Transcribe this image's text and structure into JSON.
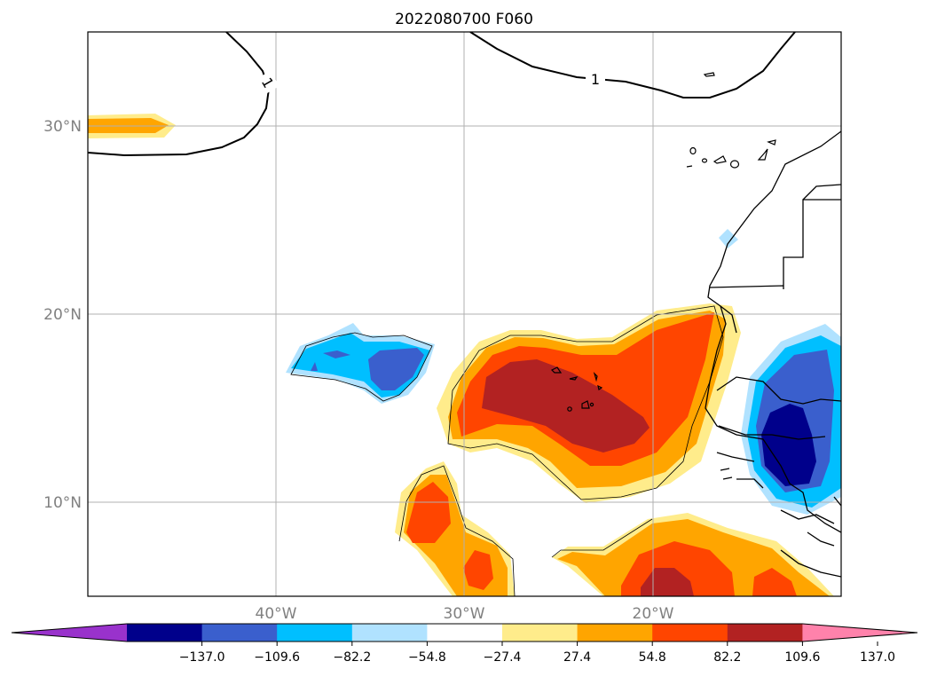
{
  "title": "2022080700 F060",
  "lat_ticks": [
    "30°N",
    "20°N",
    "10°N"
  ],
  "lon_ticks": [
    "40°W",
    "30°W",
    "20°W"
  ],
  "contour_label": "1",
  "colorbar": {
    "ticks": [
      "−137.0",
      "−109.6",
      "−82.2",
      "−54.8",
      "−27.4",
      "27.4",
      "54.8",
      "82.2",
      "109.6",
      "137.0"
    ],
    "colors": {
      "under": "#9932cc",
      "bins": [
        "#00008b",
        "#3a5fcd",
        "#00bfff",
        "#b0e2ff",
        "#ffffff",
        "#ffec8b",
        "#ffa500",
        "#ff4500",
        "#b22222"
      ],
      "over": "#ff82ab"
    }
  },
  "colors": {
    "light_yellow": "#ffec8b",
    "orange": "#ffa500",
    "red_orange": "#ff4500",
    "dark_red": "#b22222",
    "light_blue": "#b0e2ff",
    "sky_blue": "#00bfff",
    "royal_blue": "#3a5fcd",
    "navy": "#00008b",
    "grid": "#b0b0b0"
  }
}
